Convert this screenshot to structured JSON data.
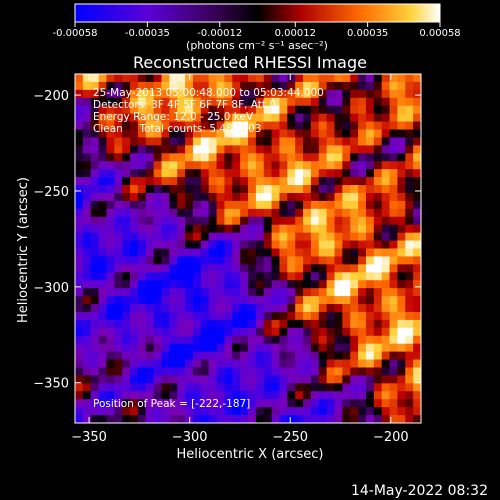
{
  "chart_data": {
    "type": "heatmap",
    "title": "Reconstructed RHESSI Image",
    "xlabel": "Heliocentric X (arcsec)",
    "ylabel": "Heliocentric Y (arcsec)",
    "xlim": [
      -357,
      -185
    ],
    "ylim": [
      -371,
      -189
    ],
    "x_ticks": [
      -350,
      -300,
      -250,
      -200
    ],
    "y_ticks": [
      -200,
      -250,
      -300,
      -350
    ],
    "colorbar": {
      "range": [
        -0.00058,
        0.00058
      ],
      "ticks": [
        -0.00058,
        -0.00035,
        -0.00012,
        0.00012,
        0.00035,
        0.00058
      ],
      "tick_labels": [
        "-0.00058",
        "-0.00035",
        "-0.00012",
        "0.00012",
        "0.00035",
        "0.00058"
      ],
      "unit_label": "(photons cm⁻² s⁻¹ asec⁻²)"
    },
    "annotations": [
      "25-May-2013 05:00:48.000 to 05:03:44.000",
      "Detectors: 3F 4F 5F 6F 7F 8F, Att 0",
      "Energy Range: 12.0 - 25.0 keV",
      "Clean     Total counts: 5.48E+03"
    ],
    "peak_label": "Position of Peak = [-222,-187]",
    "peak": [
      -222,
      -187
    ],
    "grid": false,
    "colors": {
      "background": "#000000",
      "text": "#ffffff",
      "colormap": [
        "#0000ff",
        "#5a00d8",
        "#7a00b8",
        "#000000",
        "#c00000",
        "#ff6a00",
        "#ffd23a",
        "#ffffff"
      ]
    }
  },
  "footer": {
    "timestamp": "14-May-2022 08:32"
  }
}
